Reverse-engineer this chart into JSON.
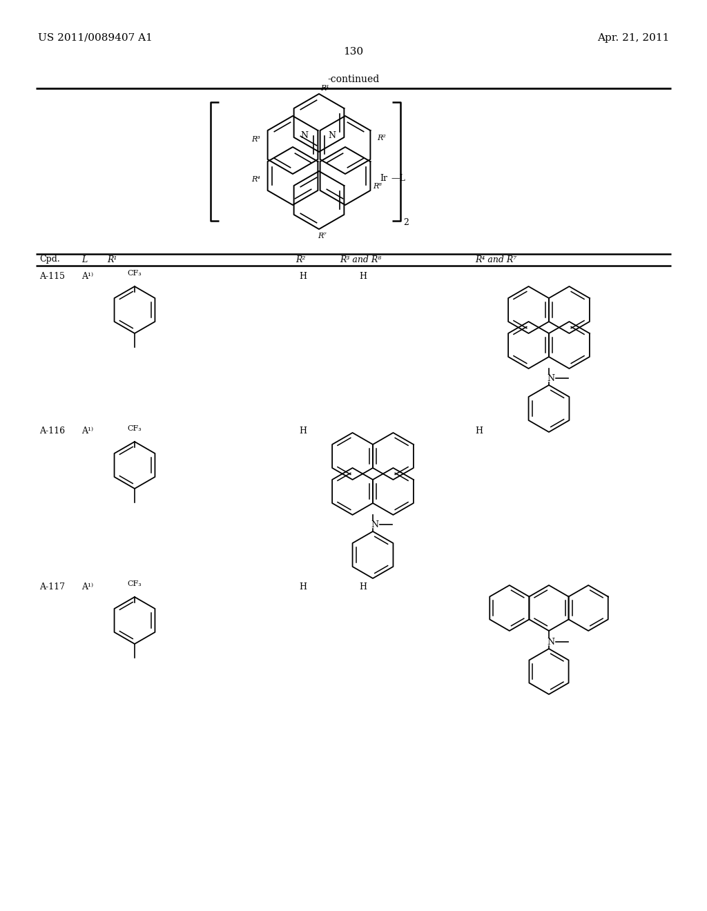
{
  "patent_number": "US 2011/0089407 A1",
  "date": "Apr. 21, 2011",
  "page_number": "130",
  "continued_text": "-continued",
  "bg": "#ffffff",
  "fg": "#000000",
  "figsize": [
    10.24,
    13.2
  ],
  "dpi": 100
}
